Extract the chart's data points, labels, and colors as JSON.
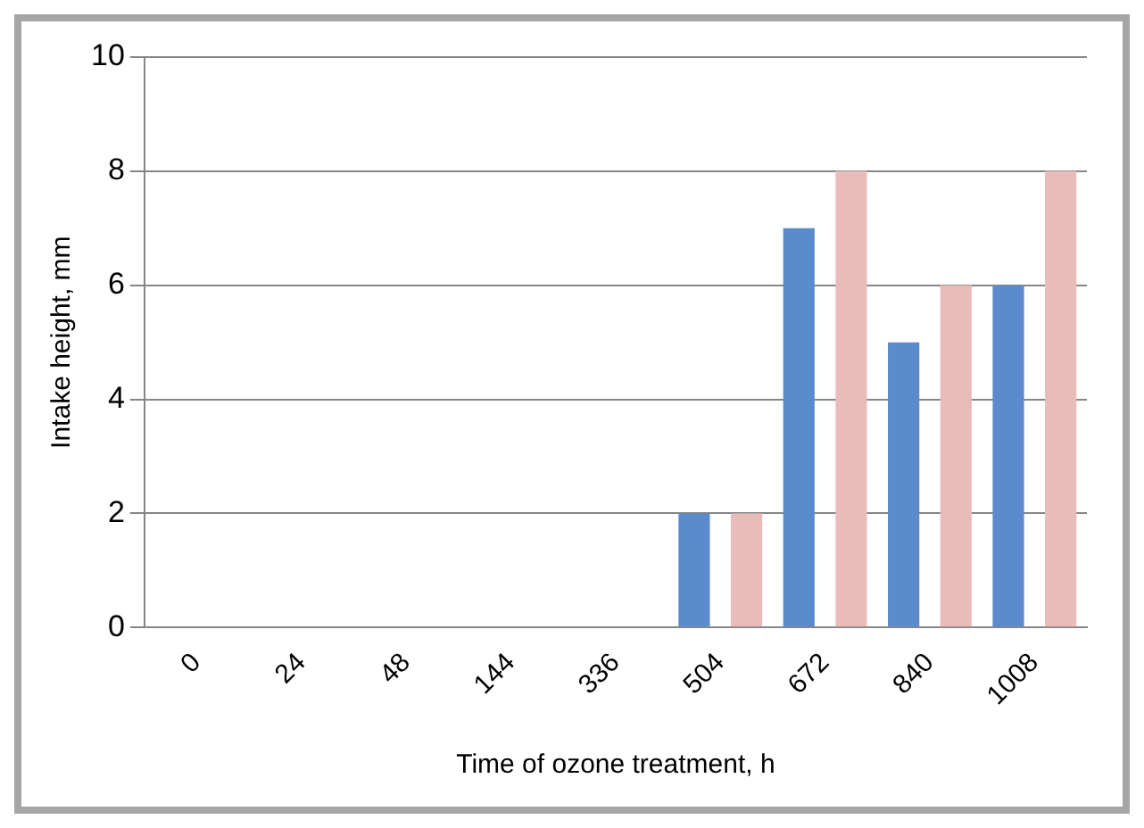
{
  "chart_data": {
    "type": "bar",
    "xlabel": "Time of ozone treatment, h",
    "ylabel": "Intake height, mm",
    "categories": [
      "0",
      "24",
      "48",
      "144",
      "336",
      "504",
      "672",
      "840",
      "1008"
    ],
    "series": [
      {
        "color": "#5b8bcc",
        "values": [
          0,
          0,
          0,
          0,
          0,
          2,
          7,
          5,
          6
        ]
      },
      {
        "color": "#e8bcbb",
        "values": [
          0,
          0,
          0,
          0,
          0,
          2,
          8,
          6,
          8
        ]
      }
    ],
    "ylim": [
      0,
      10
    ],
    "yticks": [
      0,
      2,
      4,
      6,
      8,
      10
    ],
    "grid": "y",
    "legend": false
  }
}
